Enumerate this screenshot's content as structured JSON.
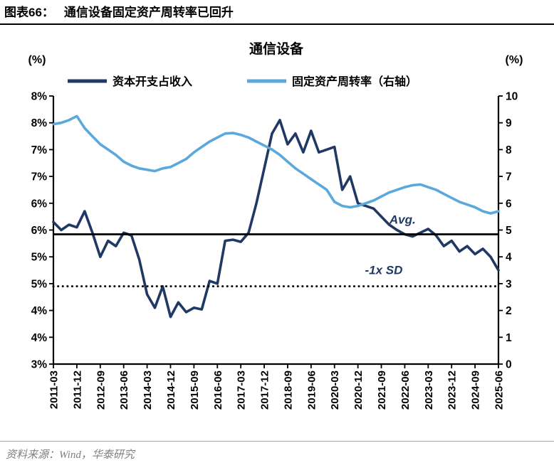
{
  "header": {
    "figure_label": "图表66：",
    "figure_title": "通信设备固定资产周转率已回升"
  },
  "footer": {
    "source": "资料来源：Wind，华泰研究"
  },
  "chart_data": {
    "type": "line",
    "title": "通信设备",
    "left_axis": {
      "unit": "(%)",
      "min": 3,
      "max": 8,
      "step": 0.5,
      "tick_labels": [
        "8%",
        "8%",
        "7%",
        "7%",
        "6%",
        "6%",
        "5%",
        "5%",
        "4%",
        "4%",
        "3%"
      ]
    },
    "right_axis": {
      "unit": "(%)",
      "min": 0,
      "max": 10,
      "step": 1,
      "tick_labels": [
        "10",
        "9",
        "8",
        "7",
        "6",
        "5",
        "4",
        "3",
        "2",
        "1",
        "0"
      ]
    },
    "x_tick_labels": [
      "2011-03",
      "2011-12",
      "2012-09",
      "2013-06",
      "2014-03",
      "2014-12",
      "2015-09",
      "2016-06",
      "2017-03",
      "2017-12",
      "2018-09",
      "2019-06",
      "2020-03",
      "2020-12",
      "2021-09",
      "2022-06",
      "2023-03",
      "2023-12",
      "2024-09",
      "2025-06"
    ],
    "x_tick_every": 3,
    "series": [
      {
        "name": "资本开支占收入",
        "axis": "left",
        "color": "#1F3864",
        "values": [
          5.65,
          5.5,
          5.6,
          5.55,
          5.85,
          5.45,
          5.0,
          5.3,
          5.2,
          5.45,
          5.4,
          4.95,
          4.3,
          4.05,
          4.45,
          3.88,
          4.15,
          3.97,
          4.05,
          4.02,
          4.55,
          4.5,
          5.3,
          5.32,
          5.28,
          5.45,
          6.0,
          6.65,
          7.3,
          7.55,
          7.1,
          7.3,
          6.95,
          7.35,
          6.95,
          7.0,
          7.05,
          6.25,
          6.5,
          6.0,
          5.95,
          5.9,
          5.75,
          5.6,
          5.5,
          5.42,
          5.38,
          5.45,
          5.52,
          5.4,
          5.2,
          5.3,
          5.1,
          5.2,
          5.05,
          5.15,
          5.0,
          4.75
        ]
      },
      {
        "name": "固定资产周转率（右轴）",
        "axis": "right",
        "color": "#5BA8DC",
        "values": [
          8.95,
          9.0,
          9.1,
          9.25,
          8.8,
          8.5,
          8.2,
          8.0,
          7.8,
          7.55,
          7.4,
          7.3,
          7.25,
          7.2,
          7.3,
          7.35,
          7.5,
          7.65,
          7.9,
          8.1,
          8.3,
          8.45,
          8.6,
          8.62,
          8.55,
          8.45,
          8.3,
          8.15,
          8.0,
          7.8,
          7.55,
          7.3,
          7.1,
          6.9,
          6.7,
          6.5,
          6.05,
          5.9,
          5.85,
          5.9,
          6.0,
          6.1,
          6.25,
          6.4,
          6.5,
          6.6,
          6.67,
          6.7,
          6.6,
          6.5,
          6.35,
          6.2,
          6.05,
          5.95,
          5.85,
          5.7,
          5.62,
          5.7
        ]
      }
    ],
    "reference_lines": [
      {
        "label": "Avg.",
        "value": 5.42,
        "axis": "left",
        "style": "solid",
        "label_x": 0.755,
        "label_value": 5.62
      },
      {
        "label": "-1x SD",
        "value": 4.45,
        "axis": "left",
        "style": "dotted",
        "label_x": 0.7,
        "label_value": 4.68
      }
    ],
    "annotation_color": "#1F3864",
    "legend_position": "top",
    "grid": false
  }
}
